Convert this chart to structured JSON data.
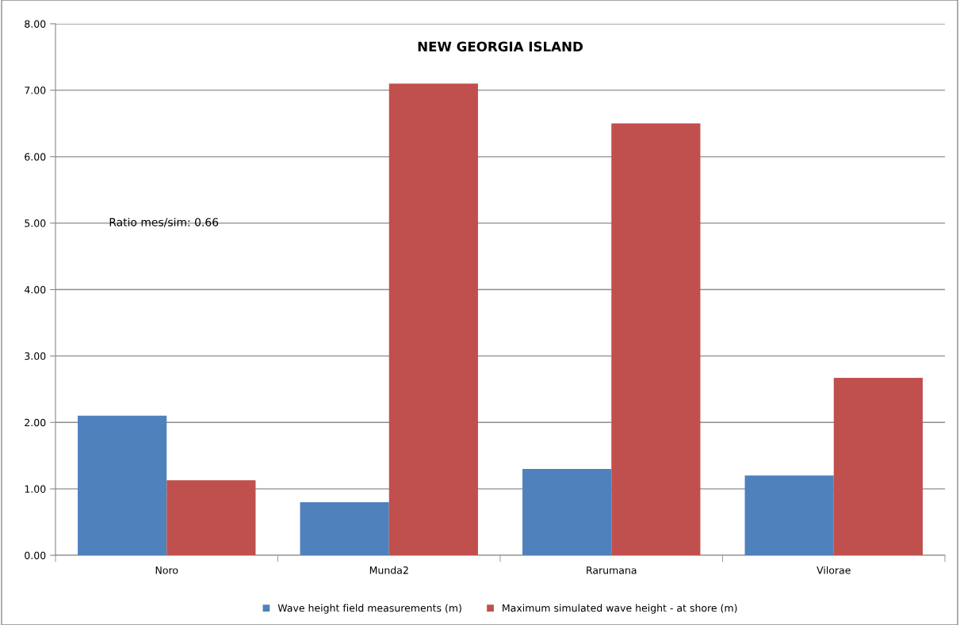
{
  "chart_data": {
    "type": "bar",
    "title": "NEW GEORGIA ISLAND",
    "categories": [
      "Noro",
      "Munda2",
      "Rarumana",
      "Vilorae"
    ],
    "series": [
      {
        "name": "Wave height field measurements (m)",
        "color": "#4f81bd",
        "values": [
          2.1,
          0.8,
          1.3,
          1.2
        ]
      },
      {
        "name": "Maximum simulated wave height - at shore (m)",
        "color": "#c0504d",
        "values": [
          1.13,
          7.1,
          6.5,
          2.67
        ]
      }
    ],
    "ylim": [
      0,
      8
    ],
    "yticks": [
      {
        "value": 0,
        "label": "0.00"
      },
      {
        "value": 1,
        "label": "1.00"
      },
      {
        "value": 2,
        "label": "2.00"
      },
      {
        "value": 3,
        "label": "3.00"
      },
      {
        "value": 4,
        "label": "4.00"
      },
      {
        "value": 5,
        "label": "5.00"
      },
      {
        "value": 6,
        "label": "6.00"
      },
      {
        "value": 7,
        "label": "7.00"
      },
      {
        "value": 8,
        "label": "8.00"
      }
    ],
    "grid": "y",
    "legend": "bottom",
    "annotations": [
      "Ratio mes/sim: 0.66"
    ]
  }
}
